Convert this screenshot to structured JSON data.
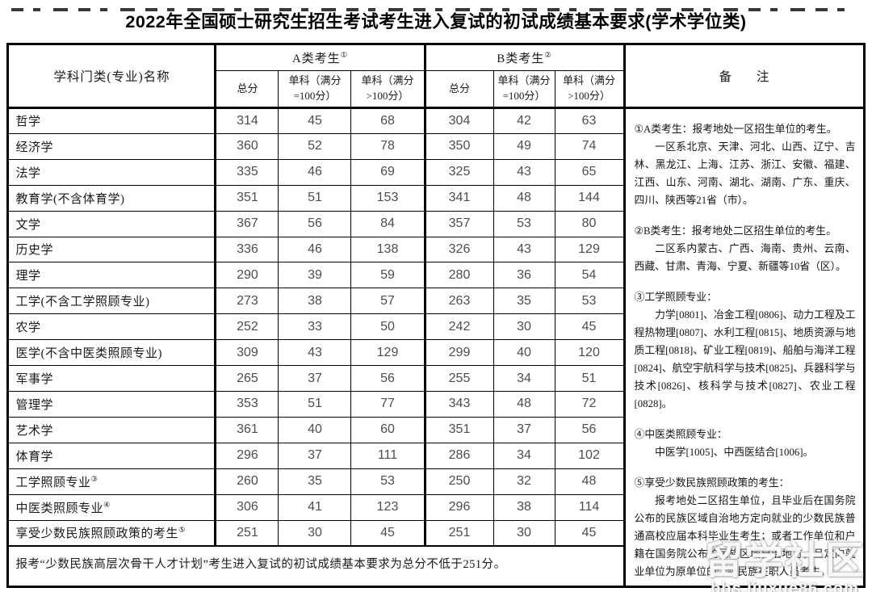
{
  "title": "2022年全国硕士研究生招生考试考生进入复试的初试成绩基本要求(学术学位类)",
  "colors": {
    "background": "#ffffff",
    "border": "#000000",
    "body_text": "#1a1a1a",
    "number_text": "#4d4d4d",
    "watermark_text": "#ffffff"
  },
  "table": {
    "subject_header": "学科门类(专业)名称",
    "group_a": {
      "label": "A类考生",
      "sup": "①"
    },
    "group_b": {
      "label": "B类考生",
      "sup": "②"
    },
    "remarks_header": "备　　注",
    "subheaders": [
      {
        "lines": [
          "总分"
        ]
      },
      {
        "lines": [
          "单科（满分",
          "=100分）"
        ]
      },
      {
        "lines": [
          "单科（满分",
          ">100分）"
        ]
      }
    ],
    "rows": [
      {
        "name": "哲学",
        "sup": "",
        "a": [
          314,
          45,
          68
        ],
        "b": [
          304,
          42,
          63
        ]
      },
      {
        "name": "经济学",
        "sup": "",
        "a": [
          360,
          52,
          78
        ],
        "b": [
          350,
          49,
          74
        ]
      },
      {
        "name": "法学",
        "sup": "",
        "a": [
          335,
          46,
          69
        ],
        "b": [
          325,
          43,
          65
        ]
      },
      {
        "name": "教育学(不含体育学)",
        "sup": "",
        "a": [
          351,
          51,
          153
        ],
        "b": [
          341,
          48,
          144
        ]
      },
      {
        "name": "文学",
        "sup": "",
        "a": [
          367,
          56,
          84
        ],
        "b": [
          357,
          53,
          80
        ]
      },
      {
        "name": "历史学",
        "sup": "",
        "a": [
          336,
          46,
          138
        ],
        "b": [
          326,
          43,
          129
        ]
      },
      {
        "name": "理学",
        "sup": "",
        "a": [
          290,
          39,
          59
        ],
        "b": [
          280,
          36,
          54
        ]
      },
      {
        "name": "工学(不含工学照顾专业)",
        "sup": "",
        "a": [
          273,
          38,
          57
        ],
        "b": [
          263,
          35,
          53
        ]
      },
      {
        "name": "农学",
        "sup": "",
        "a": [
          252,
          33,
          50
        ],
        "b": [
          242,
          30,
          45
        ]
      },
      {
        "name": "医学(不含中医类照顾专业)",
        "sup": "",
        "a": [
          309,
          43,
          129
        ],
        "b": [
          299,
          40,
          120
        ]
      },
      {
        "name": "军事学",
        "sup": "",
        "a": [
          265,
          37,
          56
        ],
        "b": [
          255,
          34,
          51
        ]
      },
      {
        "name": "管理学",
        "sup": "",
        "a": [
          353,
          51,
          77
        ],
        "b": [
          343,
          48,
          72
        ]
      },
      {
        "name": "艺术学",
        "sup": "",
        "a": [
          361,
          40,
          60
        ],
        "b": [
          351,
          37,
          56
        ]
      },
      {
        "name": "体育学",
        "sup": "",
        "a": [
          296,
          37,
          111
        ],
        "b": [
          286,
          34,
          102
        ]
      },
      {
        "name": "工学照顾专业",
        "sup": "③",
        "a": [
          260,
          35,
          53
        ],
        "b": [
          250,
          32,
          48
        ]
      },
      {
        "name": "中医类照顾专业",
        "sup": "④",
        "a": [
          306,
          41,
          123
        ],
        "b": [
          296,
          38,
          114
        ]
      },
      {
        "name": "享受少数民族照顾政策的考生",
        "sup": "⑤",
        "a": [
          251,
          30,
          45
        ],
        "b": [
          251,
          30,
          45
        ]
      }
    ],
    "footer": "报考“少数民族高层次骨干人才计划”考生进入复试的初试成绩基本要求为总分不低于251分。"
  },
  "remarks": {
    "notes": [
      {
        "head": "①A类考生：报考地处一区招生单位的考生。",
        "body": "一区系北京、天津、河北、山西、辽宁、吉林、黑龙江、上海、江苏、浙江、安徽、福建、江西、山东、河南、湖北、湖南、广东、重庆、四川、陕西等21省（市）。"
      },
      {
        "head": "②B类考生：报考地处二区招生单位的考生。",
        "body": "二区系内蒙古、广西、海南、贵州、云南、西藏、甘肃、青海、宁夏、新疆等10省（区）。"
      },
      {
        "head": "③工学照顾专业：",
        "body": "力学[0801]、冶金工程[0806]、动力工程及工程热物理[0807]、水利工程[0815]、地质资源与地质工程[0818]、矿业工程[0819]、船舶与海洋工程[0824]、航空宇航科学与技术[0825]、兵器科学与技术[0826]、核科学与技术[0827]、农业工程[0828]。"
      },
      {
        "head": "④中医类照顾专业：",
        "body": "中医学[1005]、中西医结合[1006]。"
      },
      {
        "head": "⑤享受少数民族照顾政策的考生：",
        "body": "报考地处二区招生单位，且毕业后在国务院公布的民族区域自治地方定向就业的少数民族普通高校应届本科毕业生考生；或者工作单位和户籍在国务院公布的民族区域自治地方，且定向就业单位为原单位的少数民族在职人员考生。"
      }
    ]
  },
  "watermark": {
    "line1": "留学社区",
    "line2": "bbs.liuxue86.com"
  }
}
